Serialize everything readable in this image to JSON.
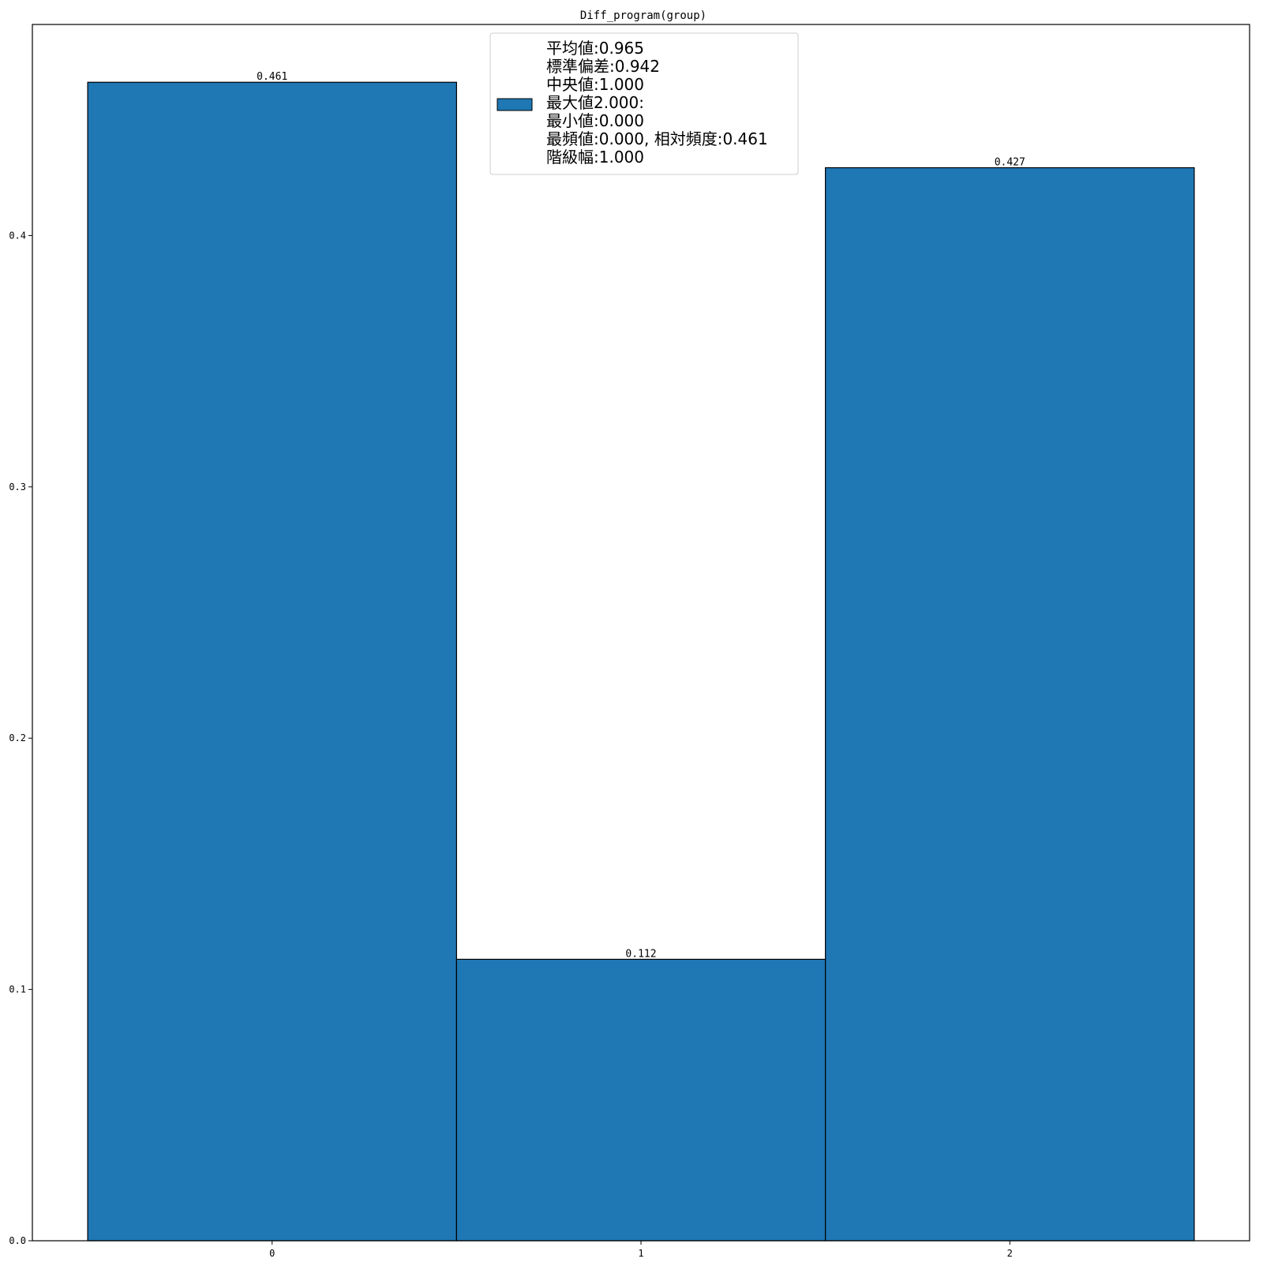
{
  "chart_data": {
    "type": "bar",
    "title": "Diff_program(group)",
    "xlabel": "",
    "ylabel": "",
    "categories": [
      "0",
      "1",
      "2"
    ],
    "x": [
      0,
      1,
      2
    ],
    "values": [
      0.461,
      0.112,
      0.427
    ],
    "data_labels": [
      "0.461",
      "0.112",
      "0.427"
    ],
    "bar_width": 1.0,
    "xlim": [
      -0.65,
      2.65
    ],
    "ylim": [
      0,
      0.484
    ],
    "yticks": [
      0.0,
      0.1,
      0.2,
      0.3,
      0.4
    ],
    "ytick_labels": [
      "0.0",
      "0.1",
      "0.2",
      "0.3",
      "0.4"
    ],
    "xticks": [
      0,
      1,
      2
    ],
    "xtick_labels": [
      "0",
      "1",
      "2"
    ],
    "grid": false,
    "legend_position": "top-center",
    "legend_lines": [
      "平均値:0.965",
      "標準偏差:0.942",
      "中央値:1.000",
      "最大値2.000:",
      "最小値:0.000",
      "最頻値:0.000, 相対頻度:0.461",
      "階級幅:1.000"
    ],
    "colors": {
      "bar_fill": "#1f77b4",
      "bar_edge": "#000000",
      "axis": "#000000",
      "legend_edge": "#cccccc"
    }
  }
}
